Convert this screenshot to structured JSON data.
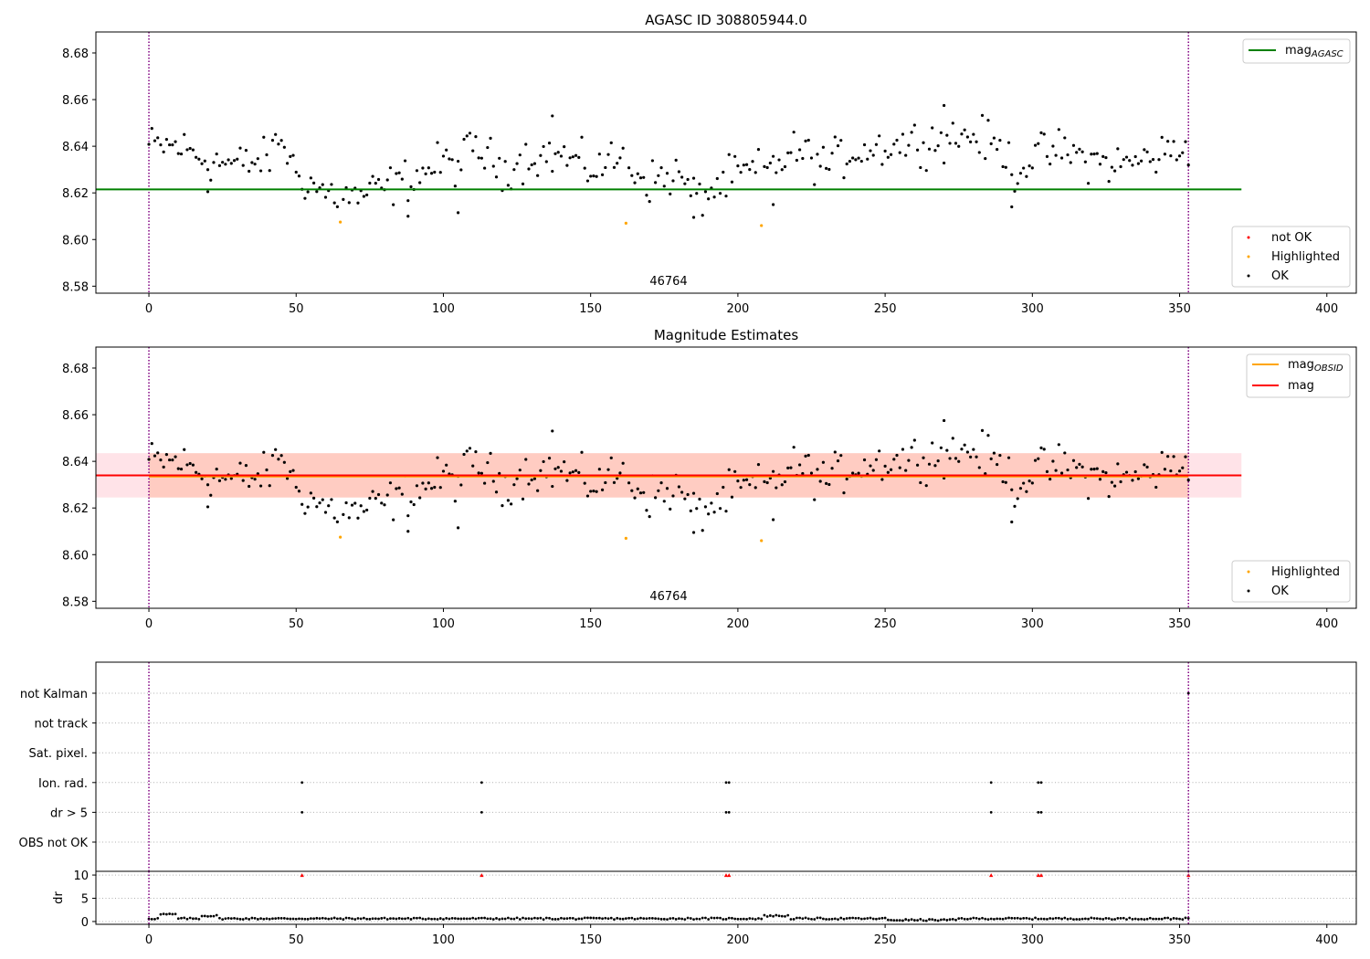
{
  "chart_data": [
    {
      "type": "scatter",
      "title": "AGASC ID 308805944.0",
      "xlim": [
        -18,
        410
      ],
      "ylim": [
        8.577,
        8.689
      ],
      "xticks": [
        0,
        50,
        100,
        150,
        200,
        250,
        300,
        350,
        400
      ],
      "xtick_labels": [
        "0",
        "50",
        "100",
        "150",
        "200",
        "250",
        "300",
        "350",
        "400"
      ],
      "yticks": [
        8.58,
        8.6,
        8.62,
        8.64,
        8.66,
        8.68
      ],
      "ytick_labels": [
        "8.58",
        "8.60",
        "8.62",
        "8.64",
        "8.66",
        "8.68"
      ],
      "vlines": [
        0,
        353
      ],
      "vline_color": "#800080",
      "annotation": {
        "text": "46764",
        "x": 176,
        "y": 8.5795
      },
      "hline": {
        "y": 8.6215,
        "x_range": [
          -18,
          371
        ],
        "color": "#008000"
      },
      "highlighted": {
        "x": [
          65,
          162,
          208
        ],
        "y": [
          8.6075,
          8.607,
          8.606
        ],
        "color": "#ffa500"
      },
      "ok_color": "#000000",
      "legend_lines": [
        {
          "label_main": "mag",
          "label_sub": "AGASC",
          "color": "#008000"
        }
      ],
      "legend_markers": [
        {
          "label": "not OK",
          "color": "#ff0000"
        },
        {
          "label": "Highlighted",
          "color": "#ffa500"
        },
        {
          "label": "OK",
          "color": "#000000"
        }
      ]
    },
    {
      "type": "scatter",
      "title": "Magnitude Estimates",
      "xlim": [
        -18,
        410
      ],
      "ylim": [
        8.577,
        8.689
      ],
      "xticks": [
        0,
        50,
        100,
        150,
        200,
        250,
        300,
        350,
        400
      ],
      "xtick_labels": [
        "0",
        "50",
        "100",
        "150",
        "200",
        "250",
        "300",
        "350",
        "400"
      ],
      "yticks": [
        8.58,
        8.6,
        8.62,
        8.64,
        8.66,
        8.68
      ],
      "ytick_labels": [
        "8.58",
        "8.60",
        "8.62",
        "8.64",
        "8.66",
        "8.68"
      ],
      "vlines": [
        0,
        353
      ],
      "vline_color": "#800080",
      "annotation": {
        "text": "46764",
        "x": 176,
        "y": 8.5795
      },
      "band_outer": {
        "y_range": [
          8.6245,
          8.6435
        ],
        "x_range": [
          -18,
          371
        ],
        "color": "#ffc0cb"
      },
      "band_inner": {
        "y_range": [
          8.6245,
          8.6435
        ],
        "x_range": [
          0,
          353
        ],
        "color": "#ffa07a"
      },
      "mag_obsid_line": {
        "y": 8.6335,
        "x_range": [
          0,
          353
        ],
        "color": "#ffa500"
      },
      "mag_line": {
        "y": 8.634,
        "x_range": [
          -18,
          371
        ],
        "color": "#ff0000"
      },
      "highlighted": {
        "x": [
          65,
          162,
          208
        ],
        "y": [
          8.6075,
          8.607,
          8.606
        ],
        "color": "#ffa500"
      },
      "ok_color": "#000000",
      "legend_lines": [
        {
          "label_main": "mag",
          "label_sub": "OBSID",
          "color": "#ffa500"
        },
        {
          "label_main": "mag",
          "label_sub": "",
          "color": "#ff0000"
        }
      ],
      "legend_markers": [
        {
          "label": "Highlighted",
          "color": "#ffa500"
        },
        {
          "label": "OK",
          "color": "#000000"
        }
      ]
    },
    {
      "type": "scatter",
      "flag_labels": [
        "not Kalman",
        "not track",
        "Sat. pixel.",
        "Ion. rad.",
        "dr > 5",
        "OBS not OK"
      ],
      "flag_points": {
        "Ion. rad.": [
          52,
          113,
          196,
          197,
          286,
          302,
          303
        ],
        "dr > 5": [
          52,
          113,
          196,
          197,
          286,
          302,
          303
        ],
        "not Kalman": [
          353
        ]
      },
      "xlim": [
        -18,
        410
      ],
      "vlines": [
        0,
        353
      ],
      "vline_color": "#800080"
    },
    {
      "type": "scatter",
      "ylabel": "dr",
      "xlim": [
        -18,
        410
      ],
      "ylim": [
        -0.6,
        10.8
      ],
      "xticks": [
        0,
        50,
        100,
        150,
        200,
        250,
        300,
        350,
        400
      ],
      "xtick_labels": [
        "0",
        "50",
        "100",
        "150",
        "200",
        "250",
        "300",
        "350",
        "400"
      ],
      "yticks": [
        0,
        5,
        10
      ],
      "ytick_labels": [
        "0",
        "5",
        "10"
      ],
      "vlines": [
        0,
        353
      ],
      "vline_color": "#800080",
      "clipped_markers": {
        "x": [
          52,
          113,
          196,
          197,
          286,
          302,
          303,
          353
        ],
        "y": 10,
        "color": "#ff0000"
      }
    }
  ]
}
